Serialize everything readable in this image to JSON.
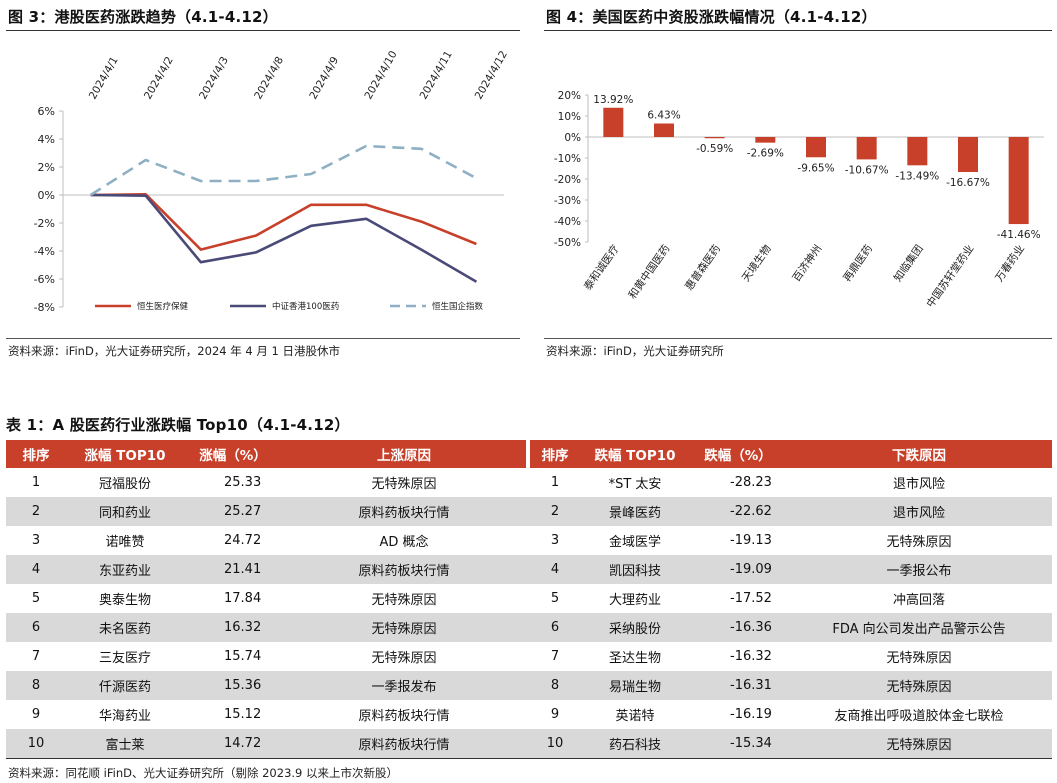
{
  "figure3": {
    "title": "图 3：港股医药涨跌趋势（4.1-4.12）",
    "source": "资料来源：iFinD，光大证券研究所，2024 年 4 月 1 日港股休市"
  },
  "figure4": {
    "title": "图 4：美国医药中资股涨跌幅情况（4.1-4.12）",
    "source": "资料来源：iFinD，光大证券研究所"
  },
  "table1": {
    "title": "表 1：A 股医药行业涨跌幅 Top10（4.1-4.12）",
    "headers": [
      "排序",
      "涨幅 TOP10",
      "涨幅（%）",
      "上涨原因",
      "排序",
      "跌幅 TOP10",
      "跌幅（%）",
      "下跌原因"
    ],
    "rows": [
      [
        "1",
        "冠福股份",
        "25.33",
        "无特殊原因",
        "1",
        "*ST 太安",
        "-28.23",
        "退市风险"
      ],
      [
        "2",
        "同和药业",
        "25.27",
        "原料药板块行情",
        "2",
        "景峰医药",
        "-22.62",
        "退市风险"
      ],
      [
        "3",
        "诺唯赞",
        "24.72",
        "AD 概念",
        "3",
        "金域医学",
        "-19.13",
        "无特殊原因"
      ],
      [
        "4",
        "东亚药业",
        "21.41",
        "原料药板块行情",
        "4",
        "凯因科技",
        "-19.09",
        "一季报公布"
      ],
      [
        "5",
        "奥泰生物",
        "17.84",
        "无特殊原因",
        "5",
        "大理药业",
        "-17.52",
        "冲高回落"
      ],
      [
        "6",
        "未名医药",
        "16.32",
        "无特殊原因",
        "6",
        "采纳股份",
        "-16.36",
        "FDA 向公司发出产品警示公告"
      ],
      [
        "7",
        "三友医疗",
        "15.74",
        "无特殊原因",
        "7",
        "圣达生物",
        "-16.32",
        "无特殊原因"
      ],
      [
        "8",
        "仟源医药",
        "15.36",
        "一季报发布",
        "8",
        "易瑞生物",
        "-16.31",
        "无特殊原因"
      ],
      [
        "9",
        "华海药业",
        "15.12",
        "原料药板块行情",
        "9",
        "英诺特",
        "-16.19",
        "友商推出呼吸道胶体金七联检"
      ],
      [
        "10",
        "富士莱",
        "14.72",
        "原料药板块行情",
        "10",
        "药石科技",
        "-15.34",
        "无特殊原因"
      ]
    ],
    "source": "资料来源：同花顺 iFinD、光大证券研究所（剔除 2023.9 以来上市次新股）"
  },
  "chart_data": [
    {
      "type": "line",
      "x": [
        "2024/4/1",
        "2024/4/2",
        "2024/4/3",
        "2024/4/8",
        "2024/4/9",
        "2024/4/10",
        "2024/4/11",
        "2024/4/12"
      ],
      "y_tick_labels": [
        "6%",
        "4%",
        "2%",
        "0%",
        "-2%",
        "-4%",
        "-6%",
        "-8%"
      ],
      "ylim": [
        -8,
        6
      ],
      "legend_position": "bottom",
      "grid": false,
      "series": [
        {
          "name": "恒生医疗保健",
          "color": "#c8402a",
          "dash": "solid",
          "values": [
            0.0,
            0.05,
            -3.9,
            -2.9,
            -0.7,
            -0.7,
            -1.9,
            -3.5
          ]
        },
        {
          "name": "中证香港100医药",
          "color": "#4a4a78",
          "dash": "solid",
          "values": [
            0.0,
            -0.05,
            -4.8,
            -4.1,
            -2.2,
            -1.7,
            -3.9,
            -6.2
          ]
        },
        {
          "name": "恒生国企指数",
          "color": "#8fb0c4",
          "dash": "dashed",
          "values": [
            0.0,
            2.5,
            1.0,
            1.0,
            1.5,
            3.5,
            3.3,
            1.2
          ]
        }
      ]
    },
    {
      "type": "bar",
      "categories": [
        "泰和诚医疗",
        "和黄中国医药",
        "惠普森医药",
        "天境生物",
        "百济神州",
        "再鼎医药",
        "知临集团",
        "中国苏轩堂药业",
        "万春药业"
      ],
      "values": [
        13.92,
        6.43,
        -0.59,
        -2.69,
        -9.65,
        -10.67,
        -13.49,
        -16.67,
        -41.46
      ],
      "data_labels": [
        "13.92%",
        "6.43%",
        "-0.59%",
        "-2.69%",
        "-9.65%",
        "-10.67%",
        "-13.49%",
        "-16.67%",
        "-41.46%"
      ],
      "y_tick_labels": [
        "20%",
        "10%",
        "0%",
        "-10%",
        "-20%",
        "-30%",
        "-40%",
        "-50%"
      ],
      "ylim": [
        -50,
        20
      ],
      "grid": false,
      "color": "#c8402a"
    }
  ]
}
